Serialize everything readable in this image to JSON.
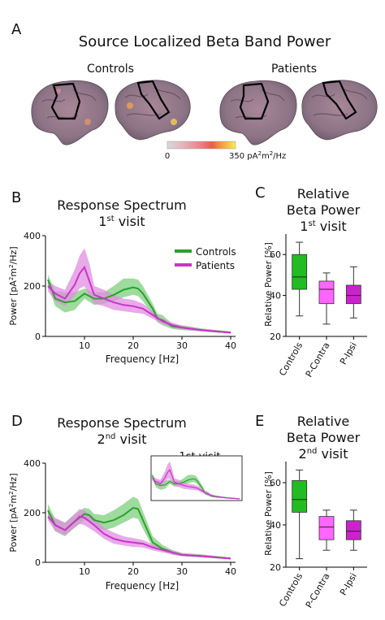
{
  "panel_letters": {
    "a": "A",
    "b": "B",
    "c": "C",
    "d": "D",
    "e": "E"
  },
  "panel_a": {
    "title": "Source Localized Beta Band Power",
    "group_controls": "Controls",
    "group_patients": "Patients",
    "colorbar_min": "0",
    "colorbar_max": "350 pA",
    "colorbar_max_sup": "2",
    "colorbar_max_mid": "m",
    "colorbar_max_end": "/Hz",
    "colormap": [
      "#d9d9d9",
      "#e6b0b5",
      "#ec7f86",
      "#ee5a4c",
      "#f4a640",
      "#f7ee4e"
    ]
  },
  "colors": {
    "controls": "#2ca02c",
    "patients": "#cc33cc",
    "controls_band": "#7fcf7f",
    "patients_band": "#e08ee0",
    "box_controls": "#22bb22",
    "box_pcontra": "#ff66ff",
    "box_pipsi": "#cc22cc"
  },
  "panel_b": {
    "title_line1": "Response Spectrum",
    "title_line2_sup": "st",
    "title_line2_num": "1",
    "title_line2_end": " visit",
    "ylabel": "Power [pA",
    "ylabel_sup1": "2",
    "ylabel_mid": "m",
    "ylabel_sup2": "2",
    "ylabel_end": "/Hz]",
    "xlabel": "Frequency [Hz]",
    "legend_controls": "Controls",
    "legend_patients": "Patients"
  },
  "panel_c": {
    "title_line1": "Relative",
    "title_line2": "Beta Power",
    "title_line3_num": "1",
    "title_line3_sup": "st",
    "title_line3_end": " visit",
    "ylabel": "Relative Power [%]"
  },
  "panel_d": {
    "title_line1": "Response Spectrum",
    "title_line2_num": "2",
    "title_line2_sup": "nd",
    "title_line2_end": " visit",
    "inset_title": "1st visit",
    "ylabel": "Power [pA",
    "ylabel_sup1": "2",
    "ylabel_mid": "m",
    "ylabel_sup2": "2",
    "ylabel_end": "/Hz]",
    "xlabel": "Frequency [Hz]"
  },
  "panel_e": {
    "title_line1": "Relative",
    "title_line2": "Beta Power",
    "title_line3_num": "2",
    "title_line3_sup": "nd",
    "title_line3_end": " visit",
    "ylabel": "Relative Power [%]"
  },
  "chart_data": [
    {
      "id": "B",
      "type": "line",
      "title": "Response Spectrum 1st visit",
      "xlabel": "Frequency [Hz]",
      "ylabel": "Power [pA2m2/Hz]",
      "xlim": [
        2,
        41
      ],
      "ylim": [
        0,
        400
      ],
      "xticks": [
        "10",
        "20",
        "30",
        "40"
      ],
      "xtick_values": [
        10,
        20,
        30,
        40
      ],
      "yticks": [
        "0",
        "200",
        "400"
      ],
      "ytick_values": [
        0,
        200,
        400
      ],
      "legend": "top-right",
      "series": [
        {
          "name": "Controls",
          "x": [
            2.5,
            4,
            6,
            8,
            10,
            12,
            14,
            16,
            18,
            20,
            21,
            22,
            24,
            25,
            26,
            28,
            30,
            34,
            40
          ],
          "y": [
            225,
            150,
            135,
            140,
            170,
            150,
            150,
            165,
            185,
            195,
            190,
            170,
            110,
            70,
            65,
            40,
            35,
            25,
            15
          ],
          "lo": [
            205,
            120,
            95,
            105,
            150,
            125,
            130,
            140,
            155,
            165,
            160,
            140,
            85,
            55,
            45,
            30,
            25,
            20,
            12
          ],
          "hi": [
            245,
            180,
            175,
            175,
            190,
            175,
            175,
            200,
            230,
            230,
            225,
            200,
            130,
            90,
            85,
            50,
            45,
            32,
            20
          ]
        },
        {
          "name": "Patients",
          "x": [
            2.5,
            4,
            6,
            8,
            9,
            10,
            11,
            12,
            14,
            16,
            18,
            20,
            22,
            24,
            26,
            28,
            30,
            34,
            40
          ],
          "y": [
            200,
            170,
            150,
            205,
            250,
            275,
            220,
            165,
            150,
            135,
            125,
            120,
            110,
            85,
            60,
            45,
            35,
            25,
            15
          ],
          "lo": [
            180,
            140,
            120,
            160,
            190,
            200,
            160,
            130,
            120,
            105,
            100,
            95,
            90,
            70,
            50,
            35,
            28,
            20,
            12
          ],
          "hi": [
            220,
            200,
            185,
            265,
            320,
            350,
            290,
            200,
            185,
            165,
            150,
            145,
            130,
            100,
            70,
            55,
            42,
            30,
            18
          ]
        }
      ]
    },
    {
      "id": "C",
      "type": "box",
      "title": "Relative Beta Power 1st visit",
      "ylabel": "Relative Power [%]",
      "ylim": [
        20,
        70
      ],
      "yticks": [
        "20",
        "40",
        "60"
      ],
      "ytick_values": [
        20,
        40,
        60
      ],
      "categories": [
        "Controls",
        "P-Contra",
        "P-Ipsi"
      ],
      "boxes": [
        {
          "whislo": 30,
          "q1": 43,
          "med": 49,
          "q3": 60,
          "whishi": 66
        },
        {
          "whislo": 26,
          "q1": 36,
          "med": 43,
          "q3": 47,
          "whishi": 51
        },
        {
          "whislo": 29,
          "q1": 36,
          "med": 40,
          "q3": 45,
          "whishi": 54
        }
      ]
    },
    {
      "id": "D",
      "type": "line",
      "title": "Response Spectrum 2nd visit",
      "xlabel": "Frequency [Hz]",
      "ylabel": "Power [pA2m2/Hz]",
      "xlim": [
        2,
        41
      ],
      "ylim": [
        0,
        400
      ],
      "xticks": [
        "10",
        "20",
        "30",
        "40"
      ],
      "xtick_values": [
        10,
        20,
        30,
        40
      ],
      "yticks": [
        "0",
        "200",
        "400"
      ],
      "ytick_values": [
        0,
        200,
        400
      ],
      "series": [
        {
          "name": "Controls",
          "x": [
            2.5,
            4,
            6,
            8,
            10,
            11,
            12,
            14,
            16,
            18,
            20,
            21,
            22,
            24,
            26,
            28,
            30,
            34,
            40
          ],
          "y": [
            210,
            150,
            130,
            165,
            195,
            190,
            170,
            160,
            170,
            190,
            220,
            215,
            170,
            80,
            55,
            40,
            30,
            25,
            15
          ],
          "lo": [
            190,
            125,
            105,
            140,
            170,
            165,
            145,
            130,
            140,
            160,
            180,
            175,
            135,
            60,
            45,
            30,
            25,
            20,
            12
          ],
          "hi": [
            235,
            175,
            160,
            195,
            220,
            215,
            195,
            190,
            210,
            235,
            265,
            255,
            205,
            105,
            70,
            50,
            38,
            32,
            20
          ]
        },
        {
          "name": "Patients",
          "x": [
            2.5,
            4,
            6,
            8,
            9,
            10,
            12,
            14,
            16,
            18,
            20,
            22,
            24,
            26,
            28,
            30,
            34,
            40
          ],
          "y": [
            185,
            150,
            130,
            165,
            185,
            180,
            150,
            115,
            95,
            85,
            80,
            75,
            60,
            50,
            40,
            30,
            25,
            15
          ],
          "lo": [
            170,
            125,
            110,
            140,
            155,
            150,
            125,
            95,
            75,
            68,
            62,
            60,
            48,
            40,
            32,
            25,
            20,
            12
          ],
          "hi": [
            200,
            180,
            160,
            195,
            215,
            210,
            180,
            140,
            120,
            105,
            98,
            90,
            72,
            60,
            48,
            36,
            30,
            18
          ]
        }
      ]
    },
    {
      "id": "D-inset",
      "type": "line",
      "title": "1st visit",
      "xlim": [
        2,
        41
      ],
      "ylim": [
        0,
        400
      ],
      "series": [
        {
          "name": "Controls",
          "x": [
            2.5,
            4,
            6,
            8,
            10,
            12,
            14,
            16,
            18,
            20,
            21,
            22,
            24,
            25,
            26,
            28,
            30,
            34,
            40
          ],
          "y": [
            225,
            150,
            135,
            140,
            170,
            150,
            150,
            165,
            185,
            195,
            190,
            170,
            110,
            70,
            65,
            40,
            35,
            25,
            15
          ],
          "lo": [
            205,
            120,
            95,
            105,
            150,
            125,
            130,
            140,
            155,
            165,
            160,
            140,
            85,
            55,
            45,
            30,
            25,
            20,
            12
          ],
          "hi": [
            245,
            180,
            175,
            175,
            190,
            175,
            175,
            200,
            230,
            230,
            225,
            200,
            130,
            90,
            85,
            50,
            45,
            32,
            20
          ]
        },
        {
          "name": "Patients",
          "x": [
            2.5,
            4,
            6,
            8,
            9,
            10,
            11,
            12,
            14,
            16,
            18,
            20,
            22,
            24,
            26,
            28,
            30,
            34,
            40
          ],
          "y": [
            200,
            170,
            150,
            205,
            250,
            275,
            220,
            165,
            150,
            135,
            125,
            120,
            110,
            85,
            60,
            45,
            35,
            25,
            15
          ],
          "lo": [
            180,
            140,
            120,
            160,
            190,
            200,
            160,
            130,
            120,
            105,
            100,
            95,
            90,
            70,
            50,
            35,
            28,
            20,
            12
          ],
          "hi": [
            220,
            200,
            185,
            265,
            320,
            350,
            290,
            200,
            185,
            165,
            150,
            145,
            130,
            100,
            70,
            55,
            42,
            30,
            18
          ]
        }
      ]
    },
    {
      "id": "E",
      "type": "box",
      "title": "Relative Beta Power 2nd visit",
      "ylabel": "Relative Power [%]",
      "ylim": [
        20,
        70
      ],
      "yticks": [
        "20",
        "40",
        "60"
      ],
      "ytick_values": [
        20,
        40,
        60
      ],
      "categories": [
        "Controls",
        "P-Contra",
        "P-Ipsi"
      ],
      "boxes": [
        {
          "whislo": 24,
          "q1": 46,
          "med": 52,
          "q3": 61,
          "whishi": 66
        },
        {
          "whislo": 28,
          "q1": 33,
          "med": 39,
          "q3": 44,
          "whishi": 47
        },
        {
          "whislo": 28,
          "q1": 33,
          "med": 37,
          "q3": 42,
          "whishi": 47
        }
      ]
    }
  ]
}
